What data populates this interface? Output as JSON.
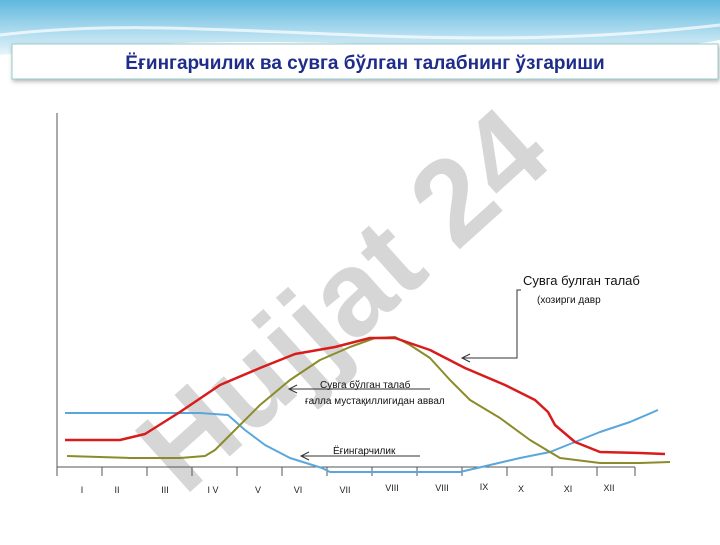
{
  "header": {
    "title": "Ёғингарчилик ва сувга бўлган талабнинг ўзгариши"
  },
  "watermark": "Hujjat 24",
  "annotations": {
    "current_demand": [
      "Сувга булган талаб",
      "(хозирги давр"
    ],
    "past_demand": [
      "Сувга бўлган талаб",
      "ғалла мустақиллигидан аввал"
    ],
    "precipitation": "Ёғингарчилик"
  },
  "months": [
    "I",
    "II",
    "III",
    "I V",
    "V",
    "VI",
    "VII",
    "VIII",
    "VIII",
    "IX",
    "X",
    "XI",
    "XII"
  ]
}
